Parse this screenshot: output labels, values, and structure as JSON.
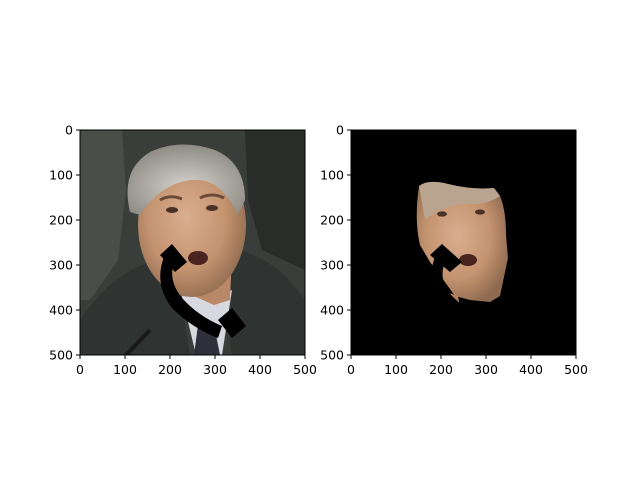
{
  "figure": {
    "background": "#ffffff"
  },
  "chart_data": [
    {
      "type": "image",
      "panel": "left",
      "content": "photo of a grey-haired man in a dark suit, white shirt and dark patterned tie, speaking; a black telephone-handset shape is drawn over his cheek and jaw",
      "xlim": [
        0,
        500
      ],
      "ylim": [
        500,
        0
      ],
      "xticks": [
        0,
        100,
        200,
        300,
        400,
        500
      ],
      "yticks": [
        0,
        100,
        200,
        300,
        400,
        500
      ],
      "xtick_labels": [
        "0",
        "100",
        "200",
        "300",
        "400",
        "500"
      ],
      "ytick_labels": [
        "0",
        "100",
        "200",
        "300",
        "400",
        "500"
      ],
      "colors": {
        "background_scene": "#3a3e3a",
        "suit": "#2e3230",
        "skin": "#c99a7c",
        "hair": "#b9b6ae",
        "occluder": "#000000"
      }
    },
    {
      "type": "image",
      "panel": "right",
      "content": "segmentation of the same image: only the face region is kept, everything else is black; the occluding handset is black",
      "xlim": [
        0,
        500
      ],
      "ylim": [
        500,
        0
      ],
      "xticks": [
        0,
        100,
        200,
        300,
        400,
        500
      ],
      "yticks": [
        0,
        100,
        200,
        300,
        400,
        500
      ],
      "xtick_labels": [
        "0",
        "100",
        "200",
        "300",
        "400",
        "500"
      ],
      "ytick_labels": [
        "0",
        "100",
        "200",
        "300",
        "400",
        "500"
      ],
      "colors": {
        "background_scene": "#000000",
        "skin": "#c99a7c",
        "occluder": "#000000"
      }
    }
  ]
}
